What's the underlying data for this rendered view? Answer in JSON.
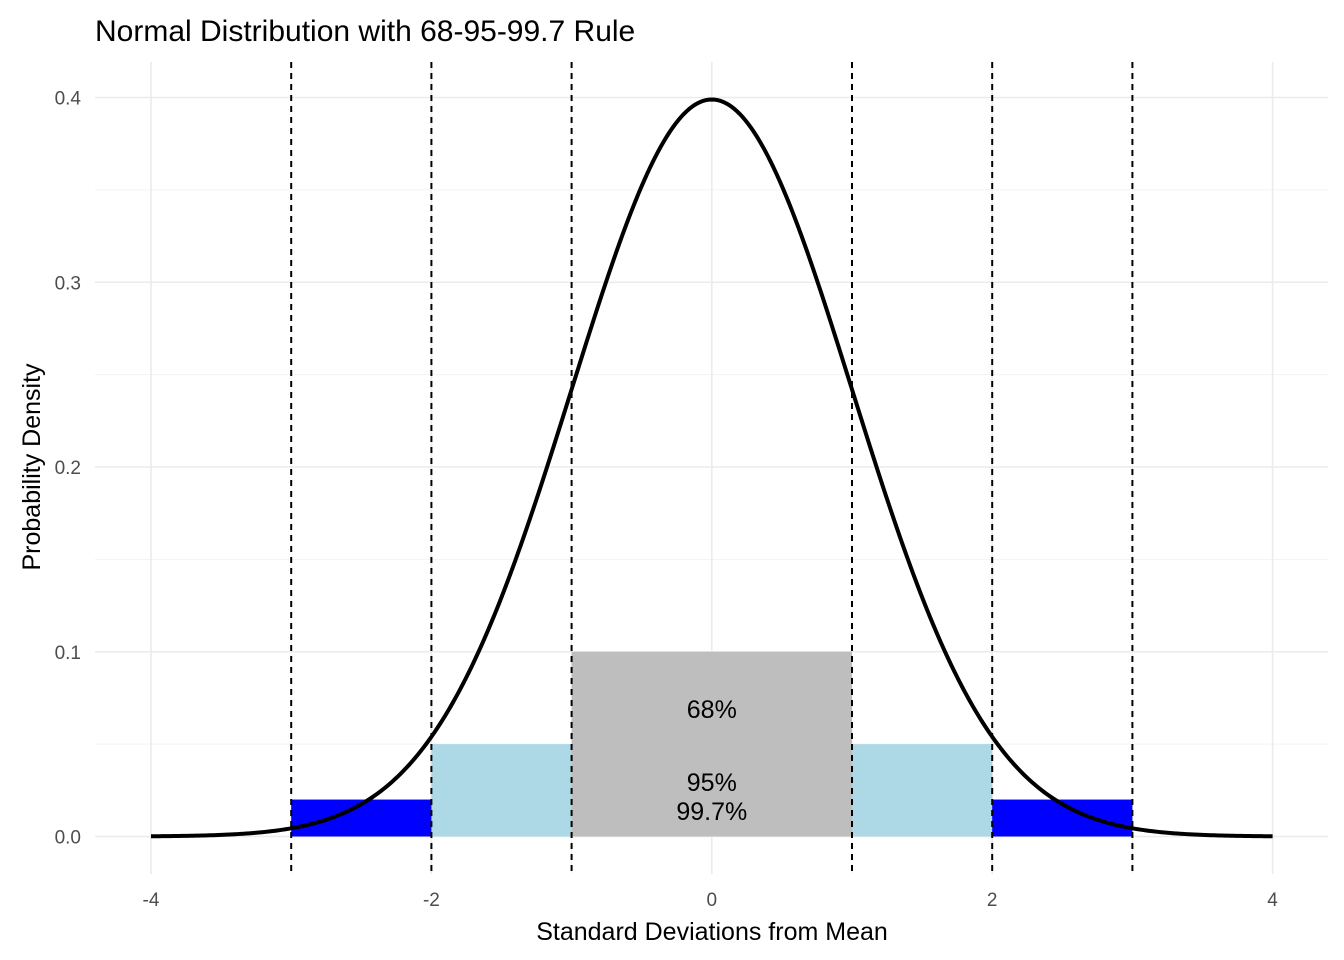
{
  "chart_data": {
    "type": "line",
    "title": "Normal Distribution with 68-95-99.7 Rule",
    "xlabel": "Standard Deviations from Mean",
    "ylabel": "Probability Density",
    "xlim": [
      -4,
      4
    ],
    "ylim": [
      0,
      0.4
    ],
    "x_ticks": [
      -4,
      -2,
      0,
      2,
      4
    ],
    "x_tick_labels": [
      "-4",
      "-2",
      "0",
      "2",
      "4"
    ],
    "y_ticks": [
      0.0,
      0.1,
      0.2,
      0.3,
      0.4
    ],
    "y_tick_labels": [
      "0.0",
      "0.1",
      "0.2",
      "0.3",
      "0.4"
    ],
    "grid": true,
    "series": [
      {
        "x": [
          -4,
          -3.5,
          -3,
          -2.5,
          -2,
          -1.5,
          -1,
          -0.5,
          0,
          0.5,
          1,
          1.5,
          2,
          2.5,
          3,
          3.5,
          4
        ],
        "values": [
          0.0001,
          0.0009,
          0.0044,
          0.0175,
          0.054,
          0.1295,
          0.242,
          0.3521,
          0.3989,
          0.3521,
          0.242,
          0.1295,
          0.054,
          0.0175,
          0.0044,
          0.0009,
          0.0001
        ],
        "color": "#000000"
      }
    ],
    "bands": [
      {
        "label": "99.7%",
        "x_range": [
          -3,
          3
        ],
        "height": 0.02,
        "color": "#0000ff"
      },
      {
        "label": "95%",
        "x_range": [
          -2,
          2
        ],
        "height": 0.05,
        "color": "#add8e6"
      },
      {
        "label": "68%",
        "x_range": [
          -1,
          1
        ],
        "height": 0.1,
        "color": "#bebebe"
      }
    ],
    "vlines": [
      -3,
      -2,
      -1,
      1,
      2,
      3
    ]
  }
}
